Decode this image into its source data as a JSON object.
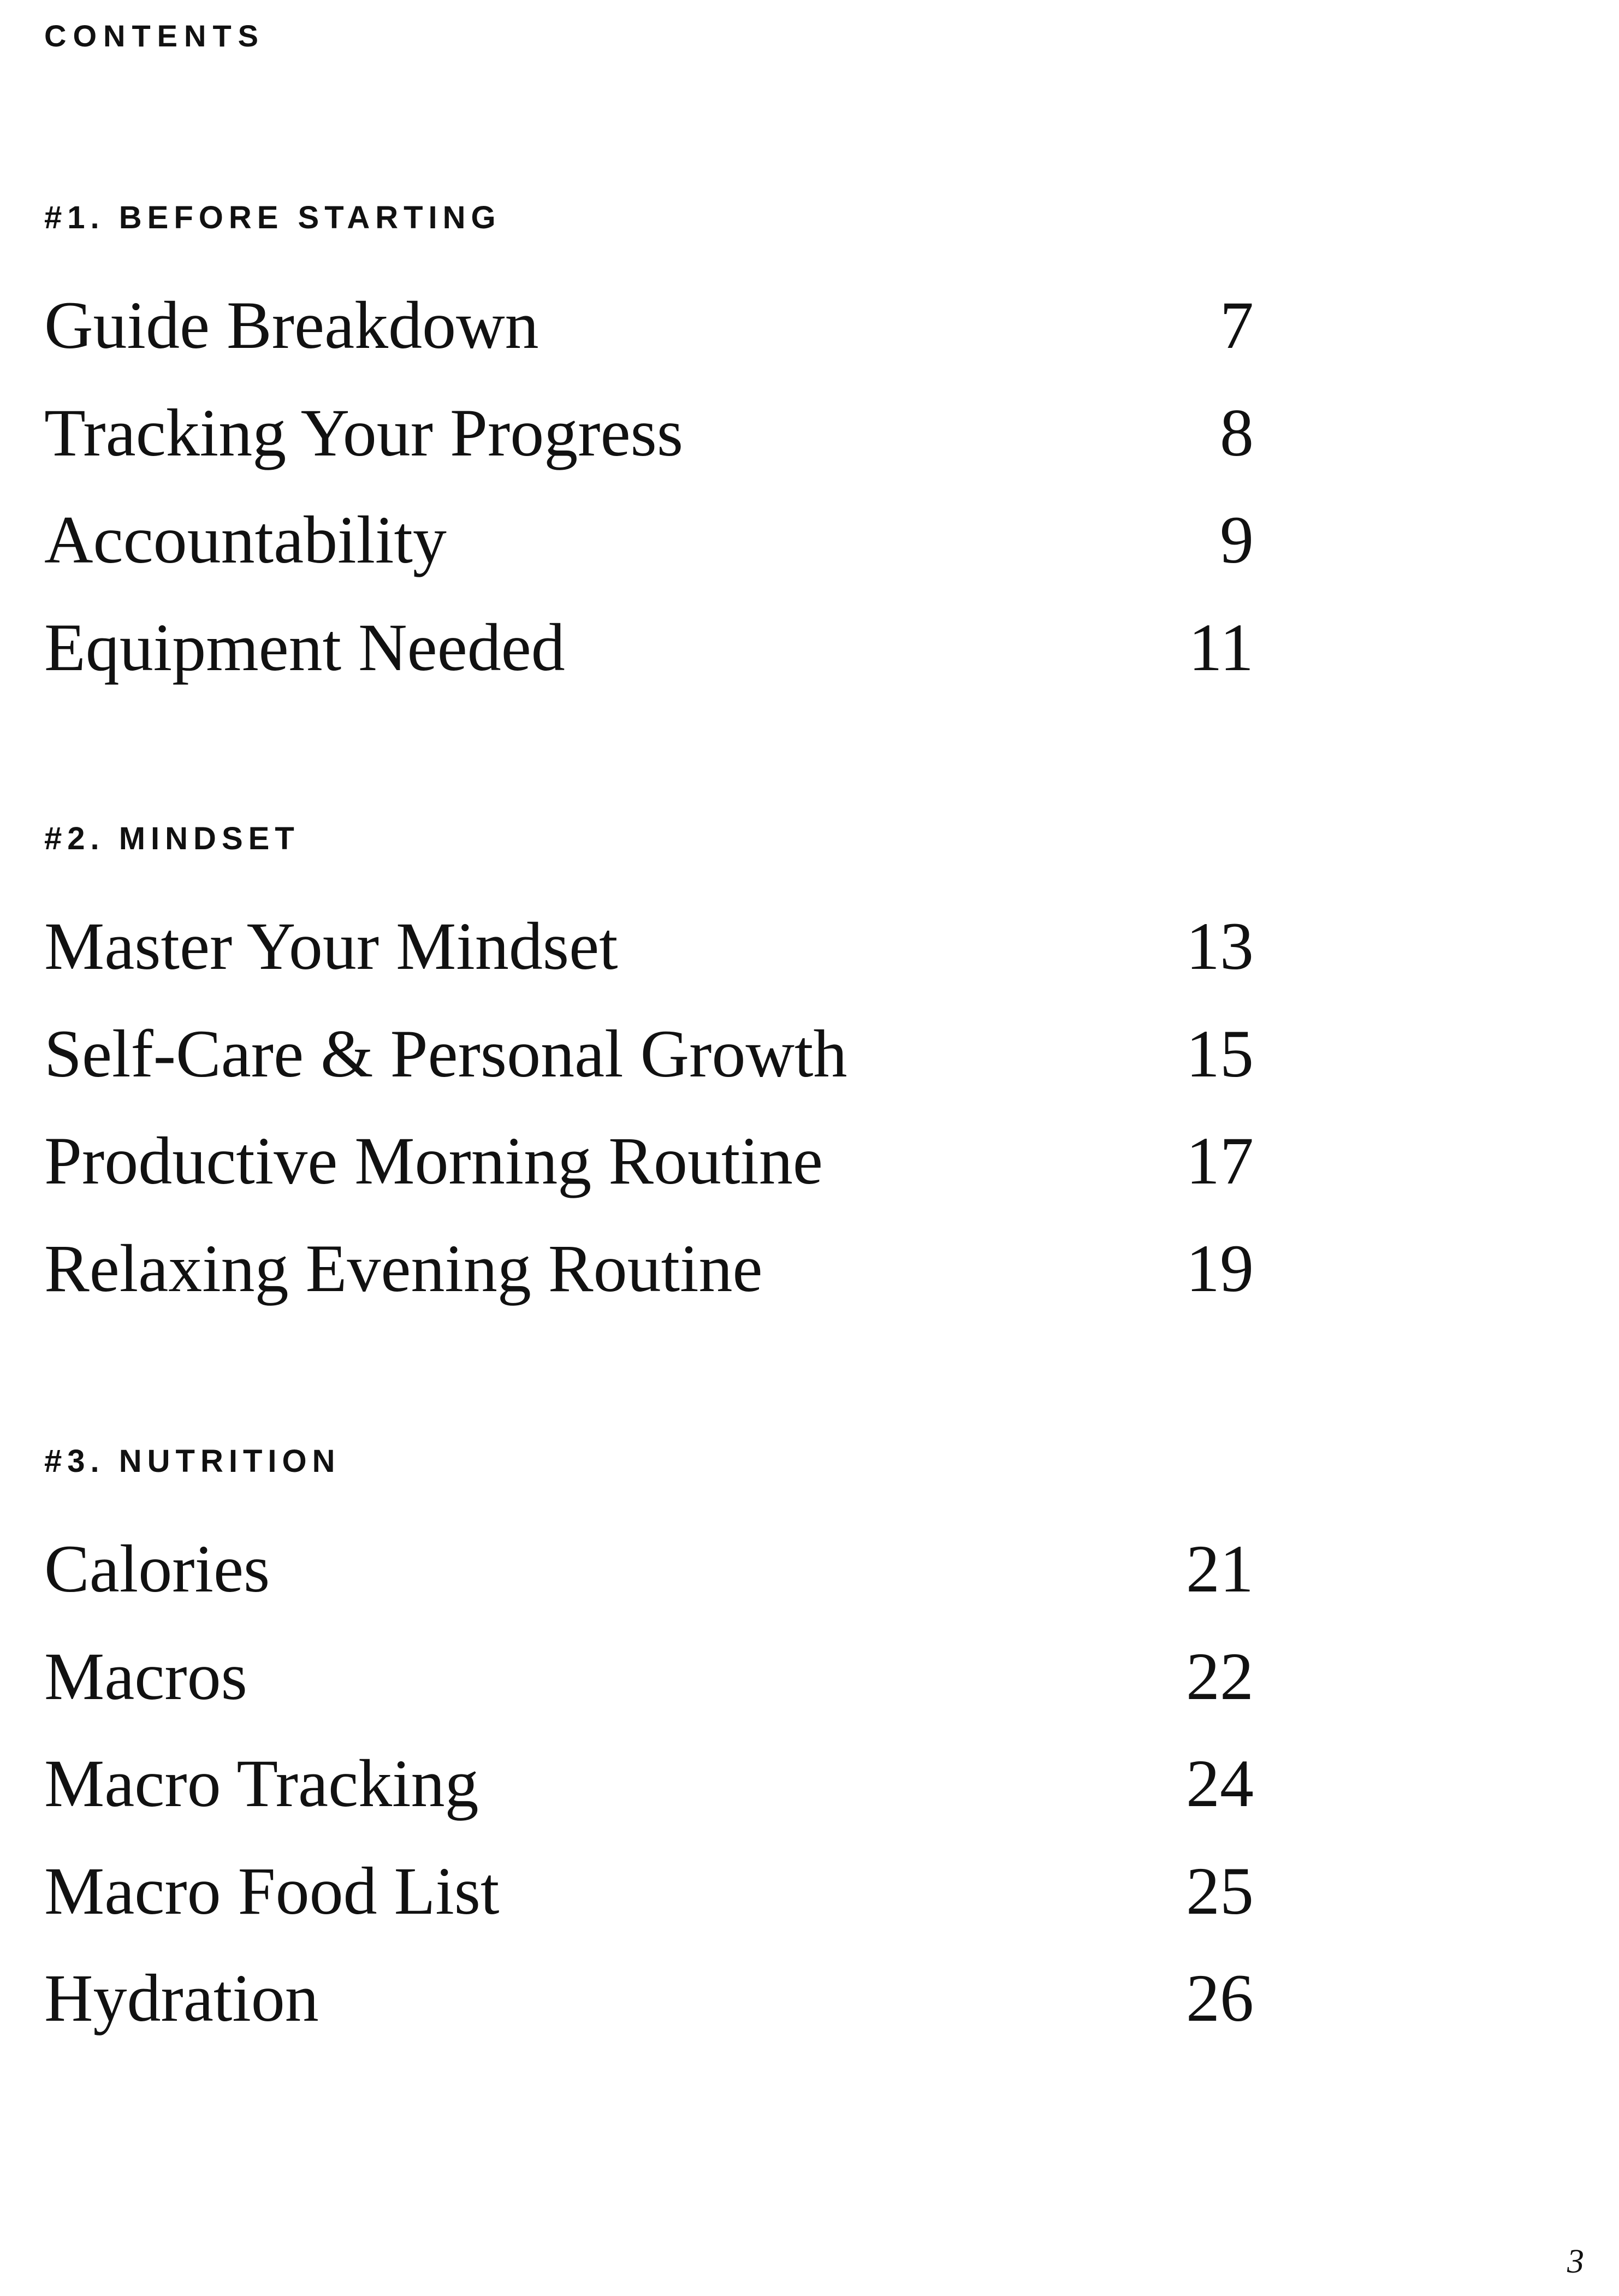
{
  "title": "CONTENTS",
  "sections": [
    {
      "heading": "#1. BEFORE STARTING",
      "items": [
        {
          "label": "Guide Breakdown",
          "page": "7"
        },
        {
          "label": "Tracking Your Progress",
          "page": "8"
        },
        {
          "label": "Accountability",
          "page": "9"
        },
        {
          "label": "Equipment Needed",
          "page": "11"
        }
      ]
    },
    {
      "heading": "#2. MINDSET",
      "items": [
        {
          "label": "Master Your Mindset",
          "page": "13"
        },
        {
          "label": "Self-Care & Personal Growth",
          "page": "15"
        },
        {
          "label": "Productive Morning Routine",
          "page": "17"
        },
        {
          "label": "Relaxing Evening Routine",
          "page": "19"
        }
      ]
    },
    {
      "heading": "#3. NUTRITION",
      "items": [
        {
          "label": "Calories",
          "page": "21"
        },
        {
          "label": "Macros",
          "page": "22"
        },
        {
          "label": "Macro Tracking",
          "page": "24"
        },
        {
          "label": "Macro Food List",
          "page": "25"
        },
        {
          "label": "Hydration",
          "page": "26"
        }
      ]
    }
  ],
  "page_number": "3"
}
